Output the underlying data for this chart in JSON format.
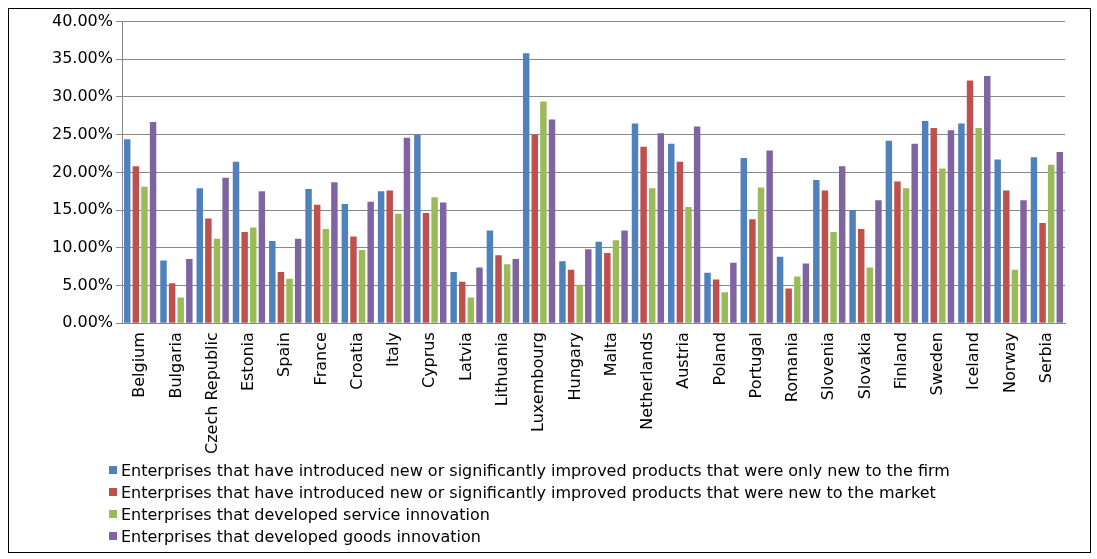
{
  "chart_data": {
    "type": "bar",
    "categories": [
      "Belgium",
      "Bulgaria",
      "Czech Republic",
      "Estonia",
      "Spain",
      "France",
      "Croatia",
      "Italy",
      "Cyprus",
      "Latvia",
      "Lithuania",
      "Luxembourg",
      "Hungary",
      "Malta",
      "Netherlands",
      "Austria",
      "Poland",
      "Portugal",
      "Romania",
      "Slovenia",
      "Slovakia",
      "Finland",
      "Sweden",
      "Iceland",
      "Norway",
      "Serbia"
    ],
    "series": [
      {
        "name": "Enterprises that have introduced new or significantly improved products that were only new to the firm",
        "color": "#4f81bd",
        "values": [
          24.4,
          8.3,
          17.9,
          21.4,
          10.9,
          17.8,
          15.8,
          17.5,
          25.0,
          6.8,
          12.3,
          35.8,
          8.2,
          10.8,
          26.5,
          23.8,
          6.7,
          21.9,
          8.8,
          19.0,
          15.0,
          24.2,
          26.8,
          26.5,
          21.7,
          22.0
        ]
      },
      {
        "name": "Enterprises that have introduced new or significantly improved products that were new to the market",
        "color": "#c0504d",
        "values": [
          20.8,
          5.3,
          13.9,
          12.1,
          6.8,
          15.7,
          11.5,
          17.6,
          14.6,
          5.5,
          9.0,
          25.0,
          7.1,
          9.3,
          23.4,
          21.4,
          5.8,
          13.8,
          4.6,
          17.6,
          12.5,
          18.8,
          25.9,
          32.2,
          17.6,
          13.3
        ]
      },
      {
        "name": "Enterprises that developed service innovation",
        "color": "#9bbb59",
        "values": [
          18.1,
          3.4,
          11.2,
          12.7,
          5.9,
          12.5,
          9.7,
          14.5,
          16.7,
          3.4,
          7.8,
          29.4,
          5.1,
          11.0,
          17.9,
          15.4,
          4.1,
          18.0,
          6.2,
          12.1,
          7.4,
          17.9,
          20.5,
          25.9,
          7.1,
          21.0
        ]
      },
      {
        "name": "Enterprises that developed goods innovation",
        "color": "#8064a2",
        "values": [
          26.7,
          8.5,
          19.3,
          17.5,
          11.2,
          18.7,
          16.1,
          24.6,
          16.0,
          7.4,
          8.5,
          27.0,
          9.8,
          12.3,
          25.2,
          26.1,
          8.0,
          22.9,
          7.9,
          20.8,
          16.3,
          23.8,
          25.6,
          32.8,
          16.3,
          22.7
        ]
      }
    ],
    "ylim": [
      0,
      40
    ],
    "yticks": [
      {
        "value": 0,
        "label": "0.00%"
      },
      {
        "value": 5,
        "label": "5.00%"
      },
      {
        "value": 10,
        "label": "10.00%"
      },
      {
        "value": 15,
        "label": "15.00%"
      },
      {
        "value": 20,
        "label": "20.00%"
      },
      {
        "value": 25,
        "label": "25.00%"
      },
      {
        "value": 30,
        "label": "30.00%"
      },
      {
        "value": 35,
        "label": "35.00%"
      },
      {
        "value": 40,
        "label": "40.00%"
      }
    ],
    "grid": "y",
    "legend": "bottom"
  }
}
